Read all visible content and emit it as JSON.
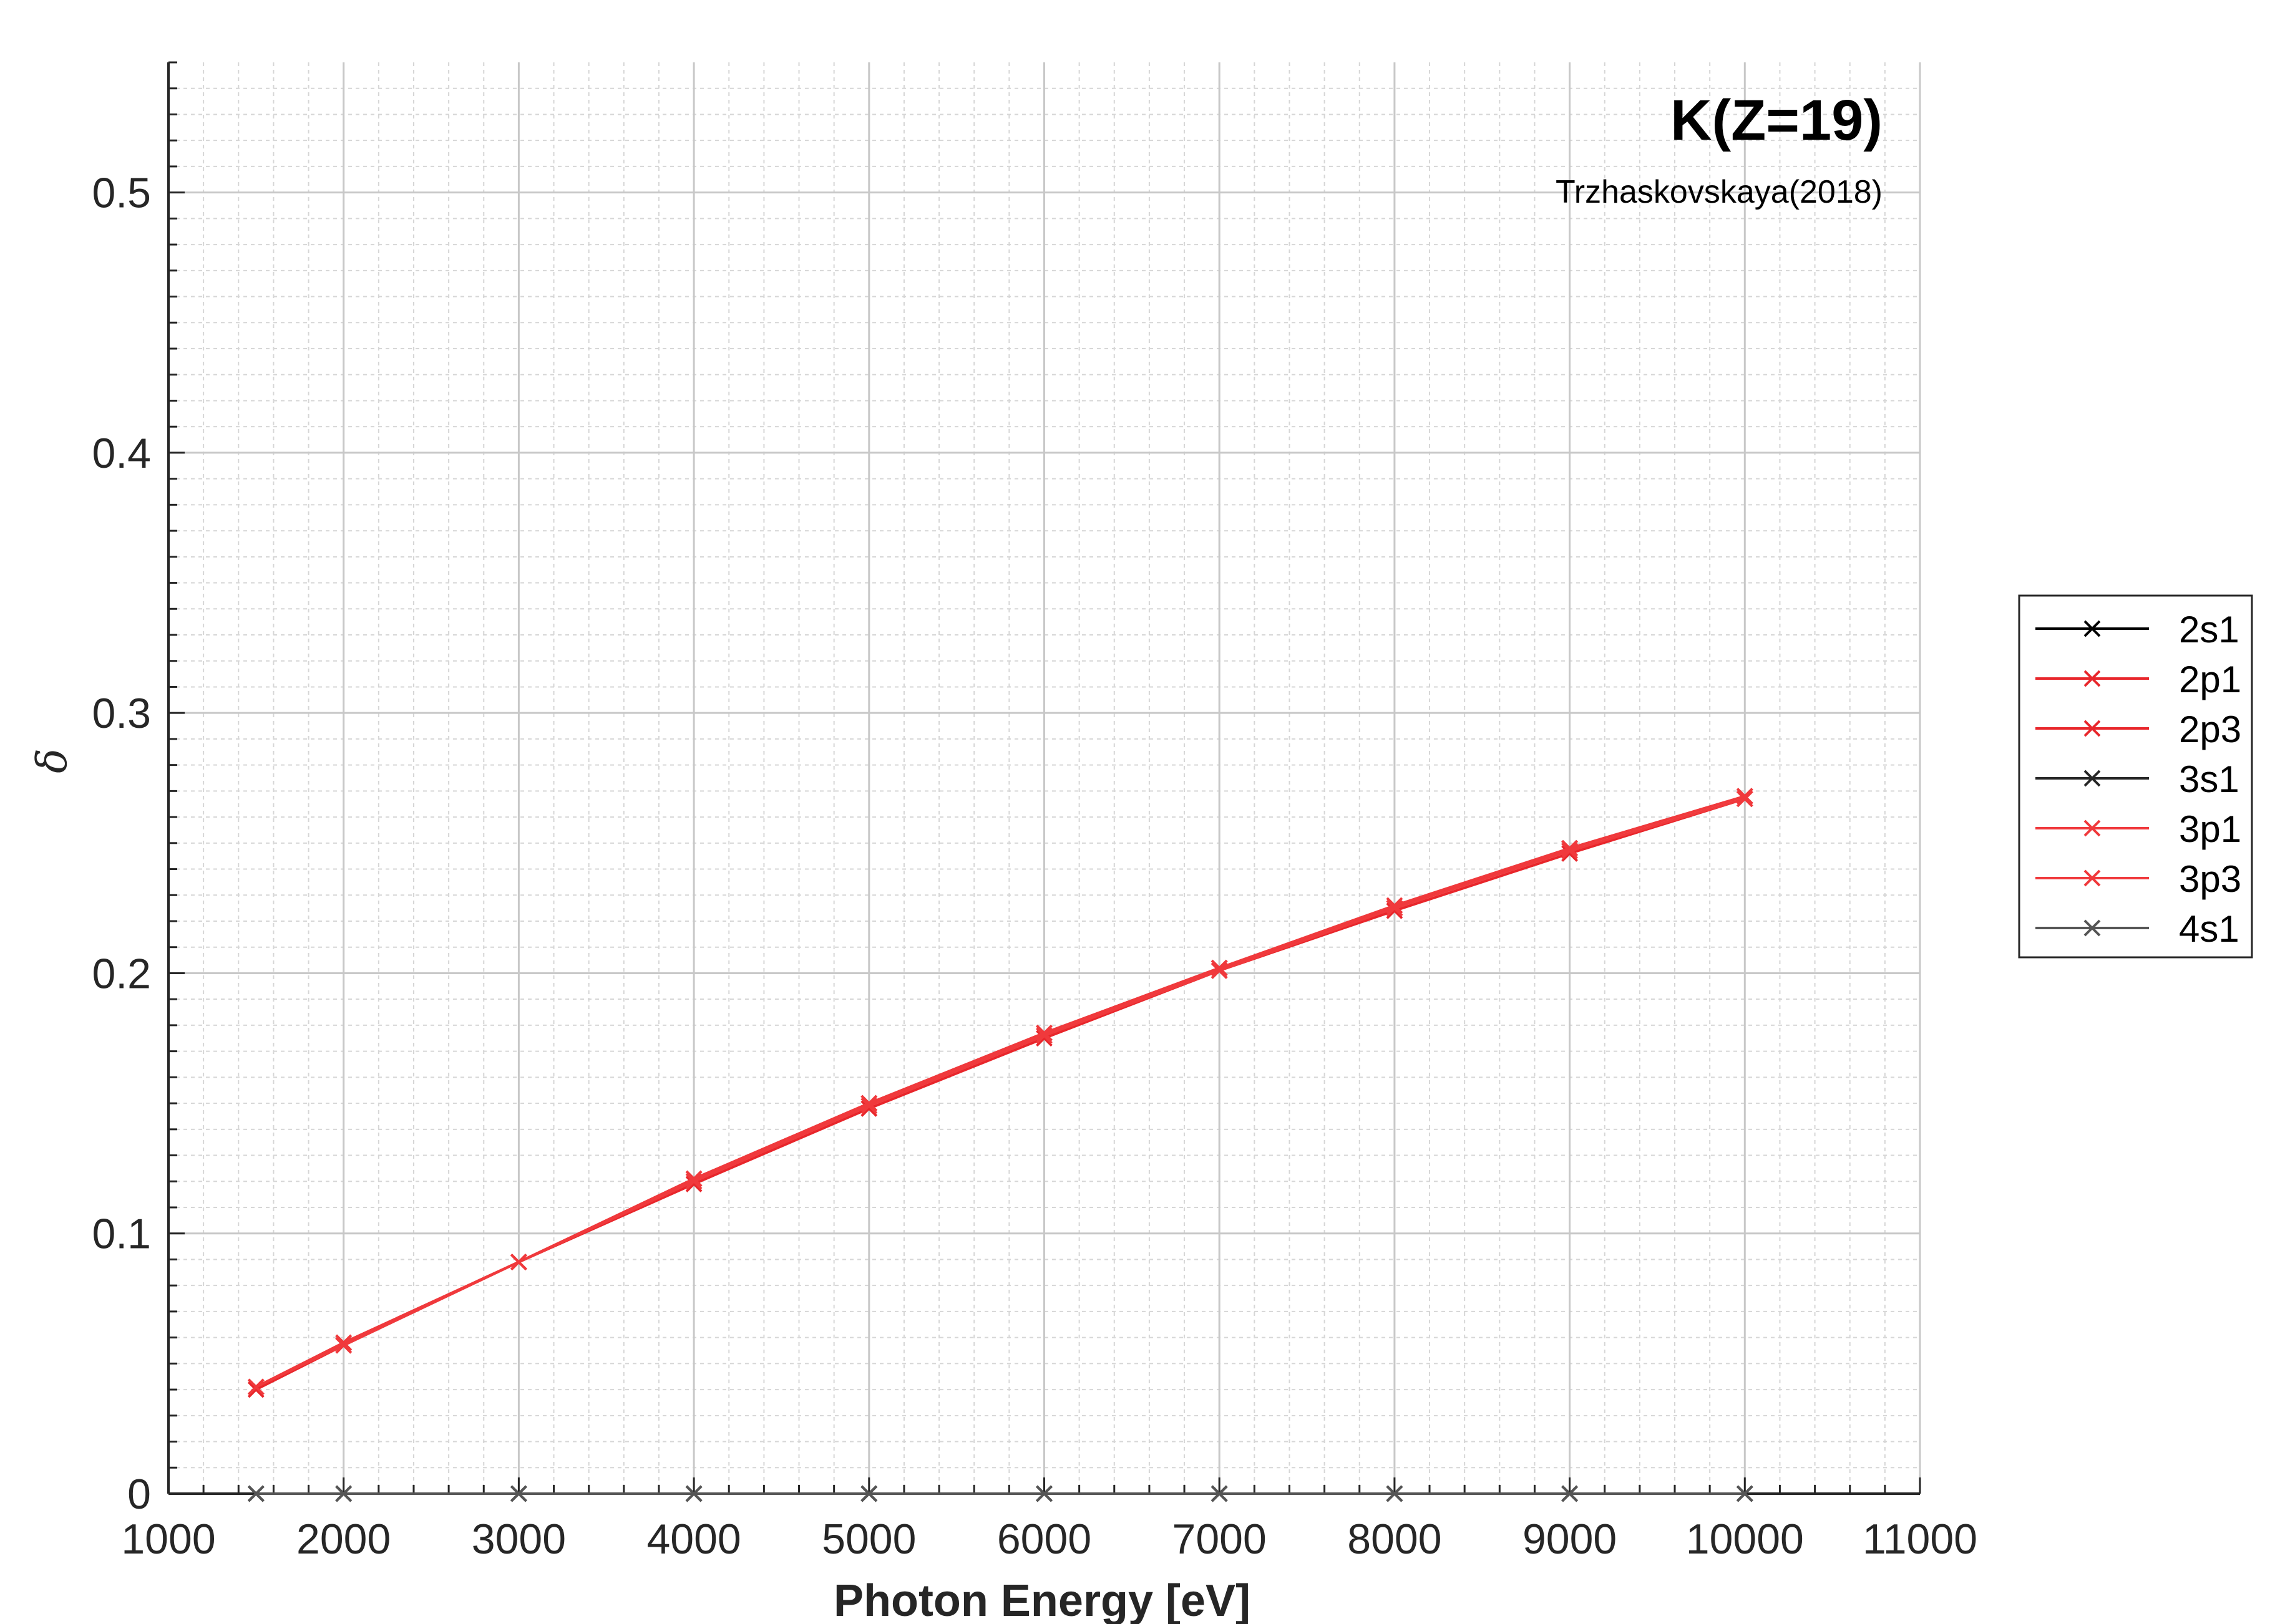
{
  "chart_data": {
    "type": "line",
    "title": "K(Z=19)",
    "subtitle": "Trzhaskovskaya(2018)",
    "xlabel": "Photon Energy [eV]",
    "ylabel": "δ",
    "xlim": [
      1000,
      11000
    ],
    "ylim": [
      0,
      0.55
    ],
    "xticks": [
      1000,
      2000,
      3000,
      4000,
      5000,
      6000,
      7000,
      8000,
      9000,
      10000,
      11000
    ],
    "xtick_labels": [
      "1000",
      "2000",
      "3000",
      "4000",
      "5000",
      "6000",
      "7000",
      "8000",
      "9000",
      "10000",
      "11000"
    ],
    "yticks": [
      0,
      0.1,
      0.2,
      0.3,
      0.4,
      0.5
    ],
    "ytick_labels": [
      "0",
      "0.1",
      "0.2",
      "0.3",
      "0.4",
      "0.5"
    ],
    "grid": true,
    "minor_grid": true,
    "legend_position": "outside-right",
    "marker": "x",
    "x": [
      1500,
      2000,
      3000,
      4000,
      5000,
      6000,
      7000,
      8000,
      9000,
      10000
    ],
    "series": [
      {
        "name": "2s1",
        "color": "#000000",
        "values": [
          0,
          0,
          0,
          0,
          0,
          0,
          0,
          0,
          0,
          0
        ]
      },
      {
        "name": "2p1",
        "color": "#e8262b",
        "values": [
          0.041,
          0.058,
          0.089,
          0.121,
          0.15,
          0.177,
          0.202,
          0.225,
          0.248,
          0.268
        ]
      },
      {
        "name": "2p3",
        "color": "#e8262b",
        "values": [
          0.04,
          0.057,
          0.089,
          0.119,
          0.148,
          0.175,
          0.201,
          0.224,
          0.246,
          0.267
        ]
      },
      {
        "name": "3s1",
        "color": "#262626",
        "values": [
          0,
          0,
          0,
          0,
          0,
          0,
          0,
          0,
          0,
          0
        ]
      },
      {
        "name": "3p1",
        "color": "#f0393c",
        "values": [
          0.041,
          0.058,
          0.089,
          0.121,
          0.15,
          0.177,
          0.202,
          0.226,
          0.248,
          0.268
        ]
      },
      {
        "name": "3p3",
        "color": "#f0393c",
        "values": [
          0.041,
          0.057,
          0.089,
          0.12,
          0.149,
          0.176,
          0.201,
          0.225,
          0.247,
          0.267
        ]
      },
      {
        "name": "4s1",
        "color": "#555555",
        "values": [
          0,
          0,
          0,
          0,
          0,
          0,
          0,
          0,
          0,
          0
        ]
      }
    ]
  }
}
